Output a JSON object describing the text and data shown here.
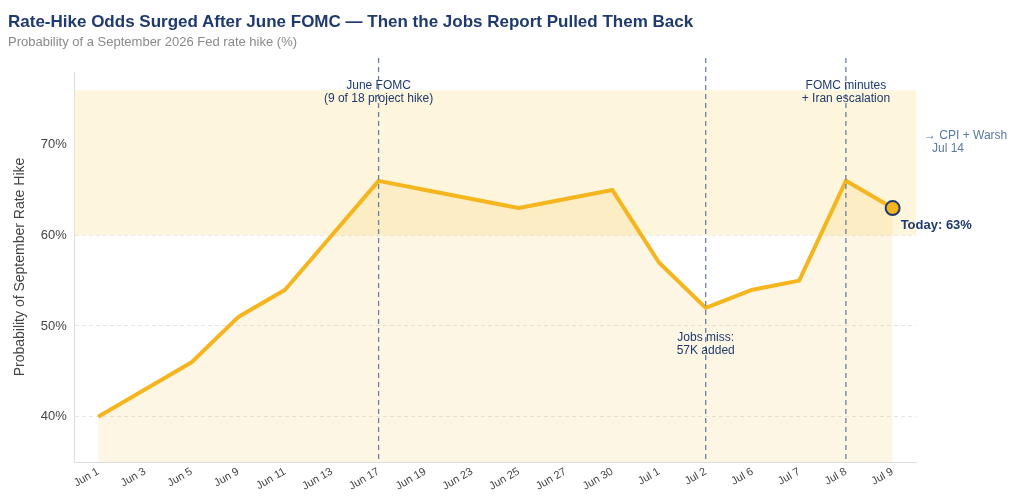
{
  "chart_data": {
    "type": "area",
    "title": "Rate-Hike Odds Surged After June FOMC — Then the Jobs Report Pulled Them Back",
    "subtitle": "Probability of a September 2026 Fed rate hike (%)",
    "ylabel": "Probability of September Rate Hike",
    "categories": [
      "Jun 1",
      "Jun 3",
      "Jun 5",
      "Jun 9",
      "Jun 11",
      "Jun 13",
      "Jun 17",
      "Jun 19",
      "Jun 23",
      "Jun 25",
      "Jun 27",
      "Jun 30",
      "Jul 1",
      "Jul 2",
      "Jul 6",
      "Jul 7",
      "Jul 8",
      "Jul 9"
    ],
    "series": [
      {
        "color": "#f5b51f",
        "values": [
          40,
          43,
          46,
          51,
          54,
          60,
          66,
          65,
          64,
          63,
          64,
          65,
          57,
          52,
          54,
          55,
          66,
          63
        ]
      },
      {
        "type": "scatter",
        "color": "#f5b51f",
        "x": [
          "Jul 9"
        ],
        "values": [
          63
        ],
        "marker": "circle"
      }
    ],
    "ylim": [
      35,
      78
    ],
    "yticks": [
      {
        "value": 40,
        "label": "40%"
      },
      {
        "value": 50,
        "label": "50%"
      },
      {
        "value": 60,
        "label": "60%"
      },
      {
        "value": 70,
        "label": "70%"
      }
    ],
    "grid": "y",
    "legend": false,
    "marker": "none",
    "bands": [
      {
        "axis": "y",
        "from": 60,
        "to": 76,
        "color": "#fdf5dc"
      }
    ],
    "ref_lines": [
      {
        "axis": "x",
        "value": "Jun 17",
        "label": "June FOMC\n(9 of 18 project hike)",
        "color": "#6b7fa0",
        "line_style": "dashed"
      },
      {
        "axis": "x",
        "value": "Jul 2",
        "label": "Jobs miss:\n57K added",
        "color": "#6b7fa0",
        "line_style": "dashed"
      },
      {
        "axis": "x",
        "value": "Jul 8",
        "label": "FOMC minutes\n+ Iran escalation",
        "color": "#6b7fa0",
        "line_style": "dashed"
      }
    ],
    "annotations": [
      {
        "text": "Today: 63%",
        "x": "Jul 9",
        "y": 63
      },
      "→ CPI + Warsh\nJul 14"
    ]
  }
}
